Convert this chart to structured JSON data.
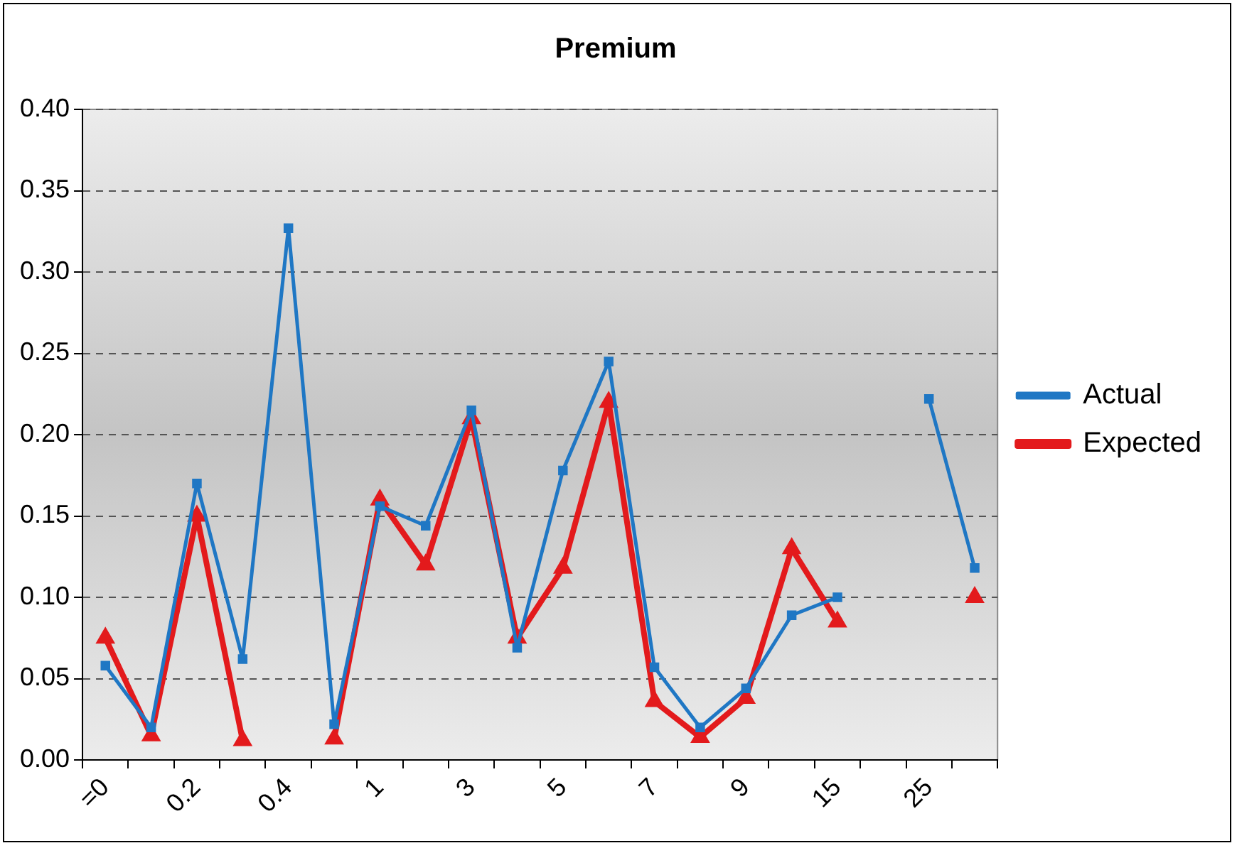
{
  "chart_data": {
    "type": "line",
    "title": "Premium",
    "categories": [
      "=0",
      null,
      "0.2",
      null,
      "0.4",
      null,
      "1",
      null,
      "3",
      null,
      "5",
      null,
      "7",
      null,
      "9",
      null,
      "15",
      null,
      "25",
      null
    ],
    "series": [
      {
        "name": "Expected",
        "color": "#e31a1c",
        "marker": "triangle",
        "values": [
          0.075,
          0.015,
          0.15,
          0.012,
          null,
          0.013,
          0.16,
          0.12,
          0.21,
          0.075,
          0.118,
          0.22,
          0.036,
          0.014,
          0.038,
          0.13,
          0.085,
          null,
          null,
          0.1
        ]
      },
      {
        "name": "Actual",
        "color": "#1f77c4",
        "marker": "square",
        "values": [
          0.058,
          0.02,
          0.17,
          0.062,
          0.327,
          0.022,
          0.156,
          0.144,
          0.215,
          0.069,
          0.178,
          0.245,
          0.057,
          0.02,
          0.044,
          0.089,
          0.1,
          null,
          0.222,
          0.118
        ]
      }
    ],
    "ylim": [
      0,
      0.4
    ],
    "yticks": [
      {
        "value": 0,
        "label": "0.00"
      },
      0.05,
      {
        "value": 0.1,
        "label": "0.10"
      },
      0.15,
      {
        "value": 0.2,
        "label": "0.20"
      },
      0.25,
      {
        "value": 0.3,
        "label": "0.30"
      },
      0.35,
      {
        "value": 0.4,
        "label": "0.40"
      }
    ],
    "grid": "y",
    "legend": "right",
    "line_style": "solid"
  }
}
